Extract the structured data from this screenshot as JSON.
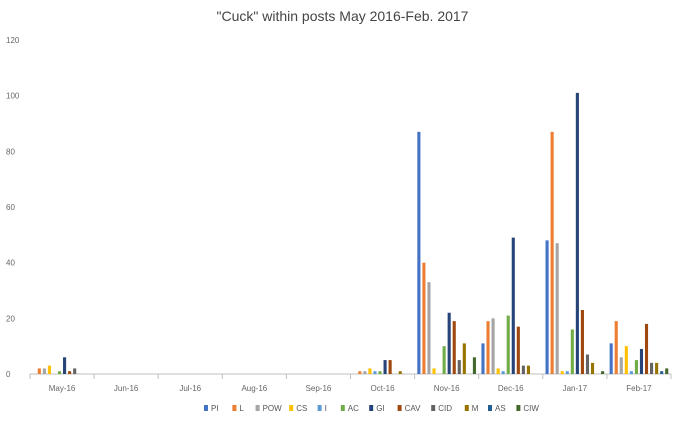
{
  "chart_data": {
    "type": "bar",
    "title": "\"Cuck\" within posts May 2016-Feb. 2017",
    "xlabel": "",
    "ylabel": "",
    "ylim": [
      0,
      120
    ],
    "yticks": [
      0,
      20,
      40,
      60,
      80,
      100,
      120
    ],
    "grid": false,
    "legend_position": "bottom",
    "categories": [
      "May-16",
      "Jun-16",
      "Jul-16",
      "Aug-16",
      "Sep-16",
      "Oct-16",
      "Nov-16",
      "Dec-16",
      "Jan-17",
      "Feb-17"
    ],
    "series": [
      {
        "name": "PI",
        "color": "#4472C4",
        "values": [
          0,
          0,
          0,
          0,
          0,
          0,
          87,
          11,
          48,
          11
        ]
      },
      {
        "name": "L",
        "color": "#ED7D31",
        "values": [
          2,
          0,
          0,
          0,
          0,
          1,
          40,
          19,
          87,
          19
        ]
      },
      {
        "name": "POW",
        "color": "#A5A5A5",
        "values": [
          2,
          0,
          0,
          0,
          0,
          1,
          33,
          20,
          47,
          6
        ]
      },
      {
        "name": "CS",
        "color": "#FFC000",
        "values": [
          3,
          0,
          0,
          0,
          0,
          2,
          2,
          2,
          1,
          10
        ]
      },
      {
        "name": "I",
        "color": "#5B9BD5",
        "values": [
          0,
          0,
          0,
          0,
          0,
          1,
          0,
          1,
          1,
          1
        ]
      },
      {
        "name": "AC",
        "color": "#70AD47",
        "values": [
          1,
          0,
          0,
          0,
          0,
          1,
          10,
          21,
          16,
          5
        ]
      },
      {
        "name": "GI",
        "color": "#264478",
        "values": [
          6,
          0,
          0,
          0,
          0,
          5,
          22,
          49,
          101,
          9
        ]
      },
      {
        "name": "CAV",
        "color": "#9E480E",
        "values": [
          1,
          0,
          0,
          0,
          0,
          5,
          19,
          17,
          23,
          18
        ]
      },
      {
        "name": "CID",
        "color": "#636363",
        "values": [
          2,
          0,
          0,
          0,
          0,
          0,
          5,
          3,
          7,
          4
        ]
      },
      {
        "name": "M",
        "color": "#997300",
        "values": [
          0,
          0,
          0,
          0,
          0,
          1,
          11,
          3,
          4,
          4
        ]
      },
      {
        "name": "AS",
        "color": "#255E91",
        "values": [
          0,
          0,
          0,
          0,
          0,
          0,
          0,
          0,
          0,
          1
        ]
      },
      {
        "name": "CIW",
        "color": "#43682B",
        "values": [
          0,
          0,
          0,
          0,
          0,
          0,
          6,
          0,
          1,
          2
        ]
      }
    ]
  }
}
